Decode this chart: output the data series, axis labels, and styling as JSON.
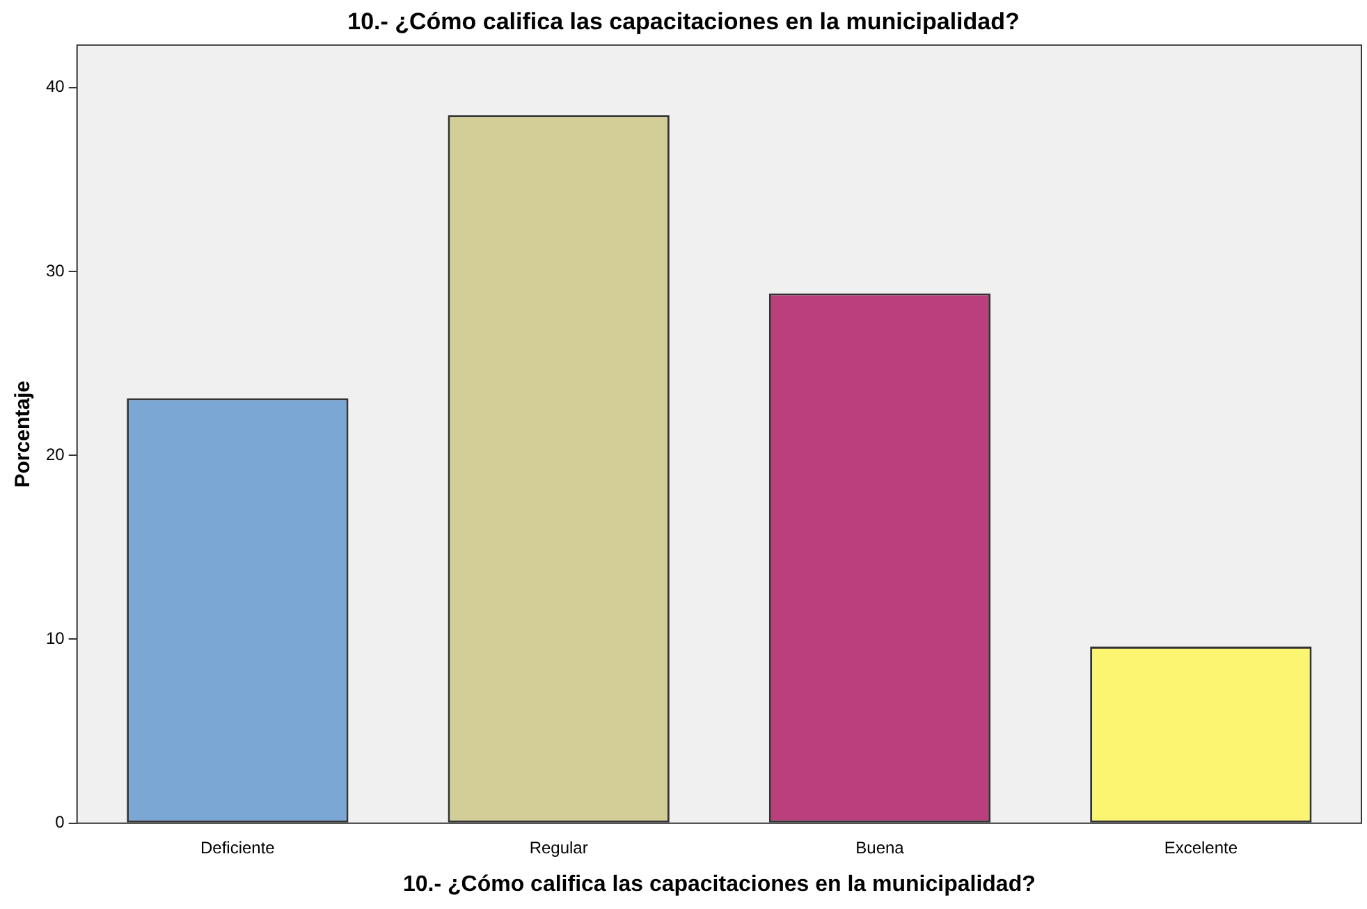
{
  "chart_data": {
    "type": "bar",
    "title": "10.- ¿Cómo califica las capacitaciones en la municipalidad?",
    "xlabel": "10.- ¿Cómo califica las capacitaciones en la municipalidad?",
    "ylabel": "Porcentaje",
    "categories": [
      "Deficiente",
      "Regular",
      "Buena",
      "Excelente"
    ],
    "values": [
      23.1,
      38.5,
      28.8,
      9.6
    ],
    "colors": [
      "#7ba7d5",
      "#d3cd97",
      "#bb3f7d",
      "#fbf571"
    ],
    "ylim": [
      0,
      42.3
    ],
    "yticks": [
      0,
      10,
      20,
      30,
      40
    ],
    "grid": false,
    "legend": false
  }
}
